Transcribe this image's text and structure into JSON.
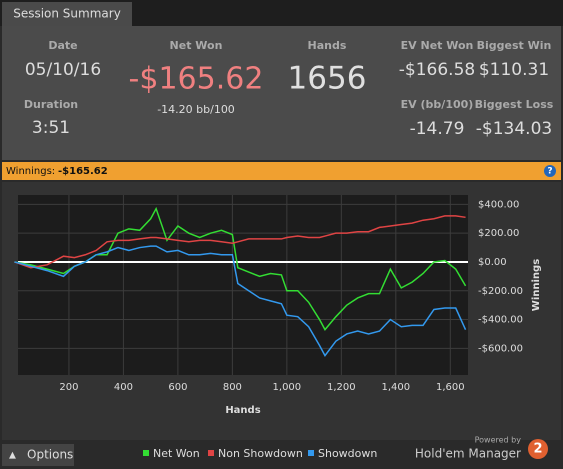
{
  "tab": "Session Summary",
  "summary": {
    "date": {
      "label": "Date",
      "value": "05/10/16"
    },
    "duration": {
      "label": "Duration",
      "value": "3:51"
    },
    "net_won": {
      "label": "Net Won",
      "value": "-$165.62",
      "sub": "-14.20 bb/100"
    },
    "hands": {
      "label": "Hands",
      "value": "1656"
    },
    "ev_net_won": {
      "label": "EV Net Won",
      "value": "-$166.58"
    },
    "biggest_win": {
      "label": "Biggest Win",
      "value": "$110.31"
    },
    "ev_bb": {
      "label": "EV (bb/100)",
      "value": "-14.79"
    },
    "biggest_loss": {
      "label": "Biggest Loss",
      "value": "-$134.03"
    }
  },
  "bar": {
    "label": "Winnings:",
    "value": "-$165.62",
    "help": "?"
  },
  "chart_data": {
    "type": "line",
    "xlabel": "Hands",
    "ylabel": "Winnings",
    "x": [
      0,
      60,
      120,
      180,
      220,
      260,
      300,
      340,
      380,
      420,
      460,
      500,
      520,
      560,
      600,
      640,
      680,
      720,
      760,
      800,
      820,
      860,
      900,
      940,
      980,
      1000,
      1040,
      1080,
      1120,
      1140,
      1180,
      1220,
      1260,
      1300,
      1340,
      1380,
      1420,
      1460,
      1500,
      1540,
      1580,
      1620,
      1656
    ],
    "series": [
      {
        "name": "Net Won",
        "color": "#33dd33",
        "values": [
          0,
          -20,
          -50,
          -80,
          -30,
          0,
          50,
          50,
          200,
          230,
          220,
          300,
          370,
          150,
          250,
          200,
          170,
          200,
          220,
          190,
          -40,
          -70,
          -100,
          -80,
          -90,
          -200,
          -200,
          -280,
          -400,
          -470,
          -380,
          -300,
          -250,
          -220,
          -220,
          -50,
          -180,
          -140,
          -80,
          0,
          10,
          -50,
          -166
        ]
      },
      {
        "name": "Non Showdown",
        "color": "#e04444",
        "values": [
          0,
          -40,
          -20,
          40,
          30,
          50,
          80,
          140,
          150,
          150,
          160,
          170,
          170,
          160,
          150,
          140,
          150,
          150,
          140,
          130,
          140,
          160,
          160,
          160,
          160,
          170,
          180,
          170,
          170,
          180,
          200,
          200,
          210,
          210,
          240,
          250,
          260,
          270,
          290,
          300,
          320,
          320,
          310
        ]
      },
      {
        "name": "Showdown",
        "color": "#3399ee",
        "values": [
          0,
          -30,
          -60,
          -100,
          -30,
          0,
          50,
          70,
          100,
          80,
          100,
          110,
          110,
          70,
          80,
          50,
          50,
          60,
          50,
          50,
          -150,
          -200,
          -250,
          -270,
          -290,
          -370,
          -380,
          -450,
          -580,
          -650,
          -550,
          -500,
          -480,
          -500,
          -480,
          -400,
          -450,
          -440,
          -440,
          -330,
          -320,
          -320,
          -470
        ]
      }
    ],
    "xlim": [
      13,
      1665
    ],
    "ylim": [
      -785,
      465
    ],
    "xticks": [
      200,
      400,
      600,
      800,
      {
        "value": 1000,
        "label": "1,000"
      },
      {
        "value": 1200,
        "label": "1,200"
      },
      {
        "value": 1400,
        "label": "1,400"
      },
      {
        "value": 1600,
        "label": "1,600"
      }
    ],
    "yticks": [
      {
        "value": 400,
        "label": "$400.00"
      },
      {
        "value": 200,
        "label": "$200.00"
      },
      {
        "value": 0,
        "label": "$0.00"
      },
      {
        "value": -200,
        "label": "-$200.00"
      },
      {
        "value": -400,
        "label": "-$400.00"
      },
      {
        "value": -600,
        "label": "-$600.00"
      }
    ],
    "grid": true,
    "legend": "bottom"
  },
  "footer": {
    "options": "Options",
    "powered": "Powered by",
    "brand": "Hold'em Manager",
    "logo": "2"
  }
}
